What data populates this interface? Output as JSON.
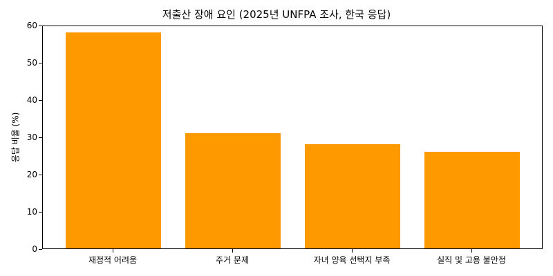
{
  "chart_data": {
    "type": "bar",
    "title": "저출산 장애 요인 (2025년 UNFPA 조사, 한국 응답)",
    "xlabel": "",
    "ylabel": "응답 비율 (%)",
    "categories": [
      "재정적 어려움",
      "주거 문제",
      "자녀 양육 선택지 부족",
      "실직 및 고용 불안정"
    ],
    "values": [
      58,
      31,
      28,
      26
    ],
    "ylim": [
      0,
      60
    ],
    "yticks": [
      0,
      10,
      20,
      30,
      40,
      50,
      60
    ],
    "grid": false,
    "legend": null,
    "bar_color": "#ff9900"
  }
}
